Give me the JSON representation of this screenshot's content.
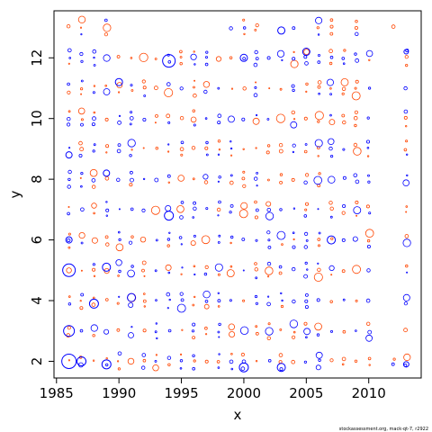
{
  "chart_data": {
    "type": "scatter",
    "subtype": "bubble",
    "xlabel": "x",
    "ylabel": "y",
    "xlim": [
      1984.8,
      2014.2
    ],
    "ylim": [
      1.45,
      13.55
    ],
    "x_ticks": [
      1985,
      1990,
      1995,
      2000,
      2005,
      2010
    ],
    "y_ticks": [
      2,
      4,
      6,
      8,
      10,
      12
    ],
    "grid": false,
    "legend": "none",
    "marker": "open-circle",
    "series": [
      {
        "color": "#0000ff",
        "meaning": "positive residual"
      },
      {
        "color": "#ff4500",
        "meaning": "negative residual"
      }
    ],
    "x_range": [
      1986,
      2013
    ],
    "y_levels": [
      2,
      3,
      4,
      5,
      6,
      7,
      8,
      9,
      10,
      11,
      12,
      13
    ],
    "highlight_points": [
      {
        "x": 1986,
        "y": 2,
        "r": 8,
        "s": 0
      },
      {
        "x": 1986,
        "y": 3,
        "r": 6,
        "s": 0
      },
      {
        "x": 1986,
        "y": 5,
        "r": 7,
        "s": 0
      },
      {
        "x": 1986,
        "y": 6,
        "r": 3.5,
        "s": 0
      },
      {
        "x": 1986,
        "y": 8.8,
        "r": 3.5,
        "s": 0
      },
      {
        "x": 1987,
        "y": 2,
        "r": 5,
        "s": 0
      },
      {
        "x": 1988,
        "y": 3.9,
        "r": 5,
        "s": 0
      },
      {
        "x": 1989,
        "y": 1.9,
        "r": 5,
        "s": 0
      },
      {
        "x": 1989,
        "y": 5.1,
        "r": 4.5,
        "s": 0
      },
      {
        "x": 1989,
        "y": 8.2,
        "r": 3.5,
        "s": 0
      },
      {
        "x": 1990,
        "y": 11.2,
        "r": 4,
        "s": 0
      },
      {
        "x": 1991,
        "y": 4.1,
        "r": 4.5,
        "s": 0
      },
      {
        "x": 1994,
        "y": 11.9,
        "r": 7,
        "s": 0
      },
      {
        "x": 1994,
        "y": 6.8,
        "r": 5,
        "s": 0
      },
      {
        "x": 2000,
        "y": 12,
        "r": 4,
        "s": 0
      },
      {
        "x": 2000,
        "y": 1.8,
        "r": 5,
        "s": 0
      },
      {
        "x": 2003,
        "y": 12.9,
        "r": 4,
        "s": 0
      },
      {
        "x": 2003,
        "y": 1.8,
        "r": 4.5,
        "s": 0
      },
      {
        "x": 2005,
        "y": 12.2,
        "r": 4,
        "s": 0
      },
      {
        "x": 2007,
        "y": 6,
        "r": 4.5,
        "s": 0
      },
      {
        "x": 2013,
        "y": 12.2,
        "r": 2.5,
        "s": 0
      },
      {
        "x": 2013,
        "y": 1.9,
        "r": 3,
        "s": 0
      }
    ]
  },
  "credit": "stockassessment.org, mack-qt-7, r2922"
}
